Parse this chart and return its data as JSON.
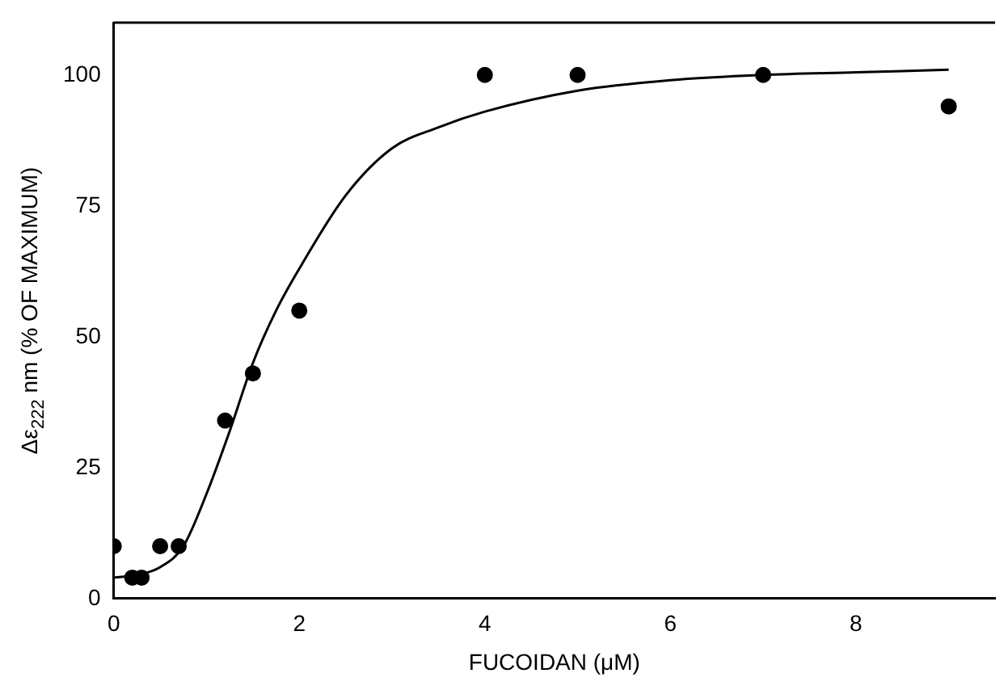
{
  "chart_data": {
    "type": "scatter",
    "xlabel": "FUCOIDAN (μM)",
    "ylabel": "Δε$_{222}$ nm (% OF MAXIMUM)",
    "xlim": [
      0,
      9.5
    ],
    "xticks": [
      0,
      2,
      4,
      6,
      8
    ],
    "ylim": [
      0,
      110
    ],
    "yticks": [
      0,
      25,
      50,
      75,
      100
    ],
    "grid": false,
    "legend": false,
    "marker": "circle",
    "series": [
      {
        "color": "#000000",
        "x": [
          0,
          0.2,
          0.3,
          0.5,
          0.7,
          1.2,
          1.5,
          2,
          4,
          5,
          7,
          9
        ],
        "values": [
          10,
          4,
          4,
          10,
          10,
          34,
          43,
          55,
          100,
          100,
          100,
          94
        ]
      },
      {
        "type": "line",
        "color": "#000000",
        "marker": "none",
        "x": [
          0,
          0.25,
          0.5,
          0.75,
          1,
          1.25,
          1.5,
          1.75,
          2,
          2.5,
          3,
          3.5,
          4,
          5,
          6,
          7,
          8,
          9
        ],
        "values": [
          4,
          4.5,
          6,
          10,
          20,
          32,
          45,
          55,
          63,
          77,
          86,
          90,
          93,
          97,
          99,
          100,
          100.5,
          101
        ]
      }
    ]
  }
}
